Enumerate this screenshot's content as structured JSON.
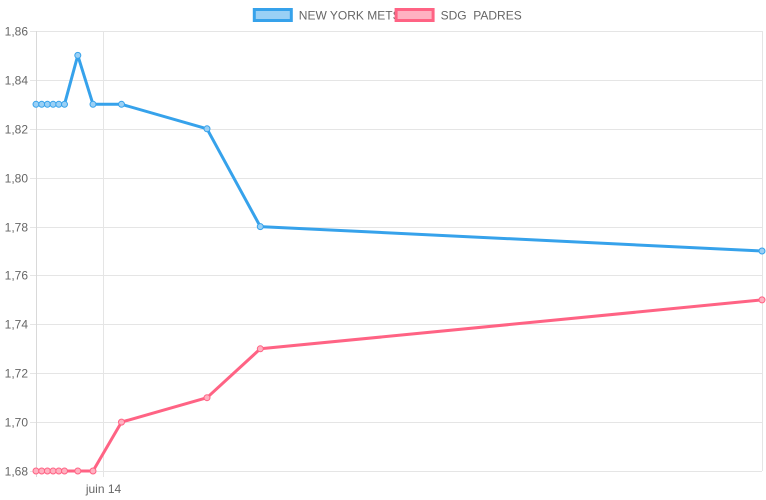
{
  "chart_data": {
    "type": "line",
    "x_axis_labels": [
      {
        "label": "juin 14",
        "x": 3.5
      }
    ],
    "ylim": [
      1.68,
      1.86
    ],
    "y_ticks": [
      "1,68",
      "1,70",
      "1,72",
      "1,74",
      "1,76",
      "1,78",
      "1,80",
      "1,82",
      "1,84",
      "1,86"
    ],
    "grid": true,
    "legend_position": "top",
    "series": [
      {
        "name": "NEW YORK METS",
        "color": "#36a2eb",
        "fill": "#9ad0f5",
        "points": [
          {
            "x": 0,
            "y": 1.83
          },
          {
            "x": 0.3,
            "y": 1.83
          },
          {
            "x": 0.6,
            "y": 1.83
          },
          {
            "x": 0.9,
            "y": 1.83
          },
          {
            "x": 1.2,
            "y": 1.83
          },
          {
            "x": 1.5,
            "y": 1.83
          },
          {
            "x": 2.2,
            "y": 1.85
          },
          {
            "x": 3.0,
            "y": 1.83
          },
          {
            "x": 4.5,
            "y": 1.83
          },
          {
            "x": 9.0,
            "y": 1.82
          },
          {
            "x": 11.8,
            "y": 1.78
          },
          {
            "x": 38.2,
            "y": 1.77
          }
        ]
      },
      {
        "name": "SDG  PADRES",
        "color": "#ff6384",
        "fill": "#ffb1c1",
        "points": [
          {
            "x": 0,
            "y": 1.68
          },
          {
            "x": 0.3,
            "y": 1.68
          },
          {
            "x": 0.6,
            "y": 1.68
          },
          {
            "x": 0.9,
            "y": 1.68
          },
          {
            "x": 1.2,
            "y": 1.68
          },
          {
            "x": 1.5,
            "y": 1.68
          },
          {
            "x": 2.2,
            "y": 1.68
          },
          {
            "x": 3.0,
            "y": 1.68
          },
          {
            "x": 4.5,
            "y": 1.7
          },
          {
            "x": 9.0,
            "y": 1.71
          },
          {
            "x": 11.8,
            "y": 1.73
          },
          {
            "x": 38.2,
            "y": 1.75
          }
        ]
      }
    ]
  }
}
